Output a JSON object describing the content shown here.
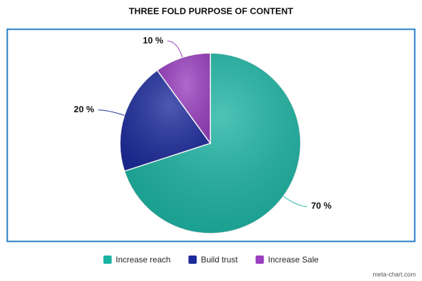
{
  "chart_data": {
    "type": "pie",
    "title": "THREE FOLD PURPOSE OF CONTENT",
    "categories": [
      "Increase reach",
      "Build trust",
      "Increase Sale"
    ],
    "values": [
      70,
      20,
      10
    ],
    "value_labels": [
      "70 %",
      "20 %",
      "10 %"
    ],
    "colors": [
      "#1ab3a2",
      "#1c2b9c",
      "#9a3fc0"
    ],
    "credit": "meta-chart.com"
  }
}
